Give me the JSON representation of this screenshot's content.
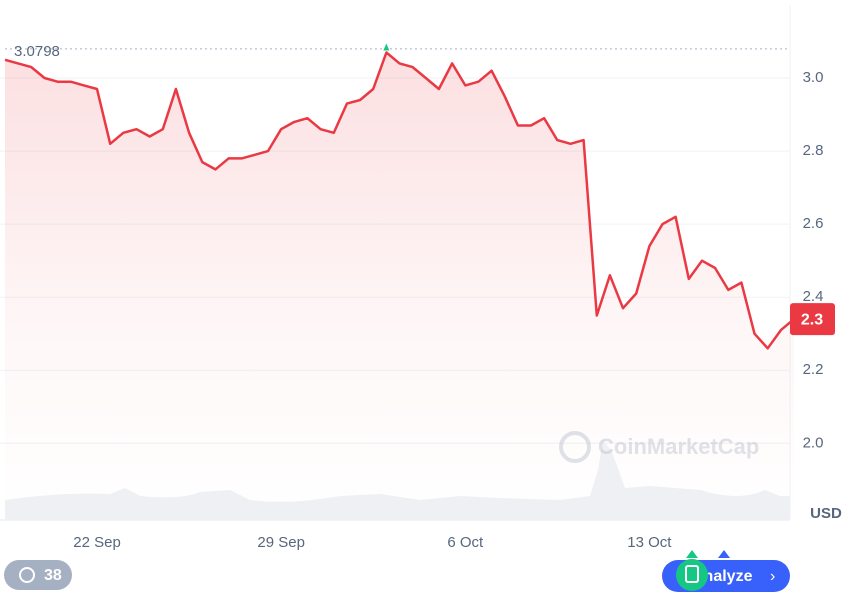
{
  "chart_data": {
    "type": "line",
    "categories": [
      null,
      null,
      null,
      null,
      null,
      null,
      null,
      "22 Sep",
      null,
      null,
      null,
      null,
      null,
      null,
      null,
      null,
      null,
      null,
      null,
      null,
      null,
      "29 Sep",
      null,
      null,
      null,
      null,
      null,
      null,
      null,
      null,
      null,
      null,
      null,
      null,
      null,
      "6 Oct",
      null,
      null,
      null,
      null,
      null,
      null,
      null,
      null,
      null,
      null,
      null,
      null,
      null,
      "13 Oct",
      null,
      null,
      null,
      null,
      null,
      null,
      null,
      null,
      null,
      null,
      null
    ],
    "series": [
      {
        "name": "USD",
        "color": "#ea3943",
        "values": [
          3.05,
          3.04,
          3.03,
          3.0,
          2.99,
          2.99,
          2.98,
          2.97,
          2.82,
          2.85,
          2.86,
          2.84,
          2.86,
          2.97,
          2.85,
          2.77,
          2.75,
          2.78,
          2.78,
          2.79,
          2.8,
          2.86,
          2.88,
          2.89,
          2.86,
          2.85,
          2.93,
          2.94,
          2.97,
          3.07,
          3.04,
          3.03,
          3.0,
          2.97,
          3.04,
          2.98,
          2.99,
          3.02,
          2.95,
          2.87,
          2.87,
          2.89,
          2.83,
          2.82,
          2.83,
          2.35,
          2.46,
          2.37,
          2.41,
          2.54,
          2.6,
          2.62,
          2.45,
          2.5,
          2.48,
          2.42,
          2.44,
          2.3,
          2.26,
          2.31,
          2.34
        ]
      }
    ],
    "last_value_label": "2.3",
    "reference_line": {
      "value": 3.0798,
      "label": "3.0798"
    },
    "ylim": [
      1.79,
      3.2
    ],
    "yticks": [
      {
        "value": 2,
        "label": "2.0"
      },
      2.2,
      2.4,
      2.6,
      2.8,
      {
        "value": 3,
        "label": "3.0"
      }
    ],
    "grid": true,
    "unit_label": "USD",
    "watermark": "CoinMarketCap",
    "badge": "38",
    "button": "Analyze"
  }
}
